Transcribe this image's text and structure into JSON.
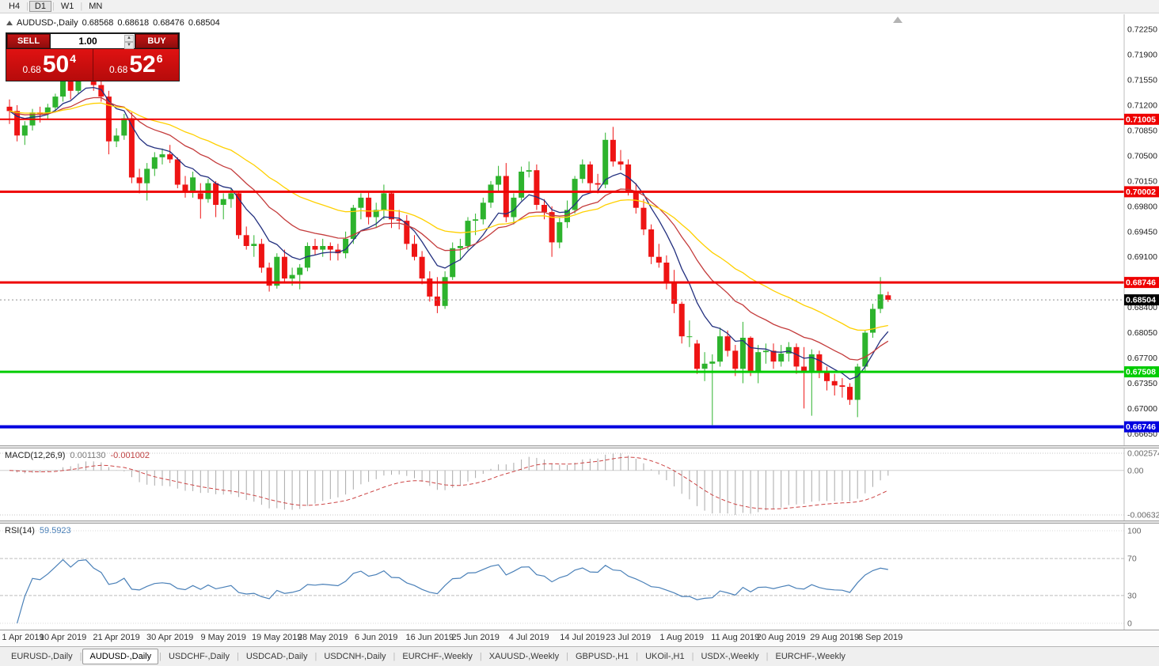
{
  "toolbar": {
    "periods": [
      {
        "label": "H4",
        "active": false
      },
      {
        "label": "D1",
        "active": true
      },
      {
        "label": "W1",
        "active": false
      },
      {
        "label": "MN",
        "active": false
      }
    ]
  },
  "chart_header": {
    "title": "AUDUSD-,Daily",
    "ohlc": {
      "open": "0.68568",
      "high": "0.68618",
      "low": "0.68476",
      "close": "0.68504"
    }
  },
  "trade_panel": {
    "sell_label": "SELL",
    "buy_label": "BUY",
    "volume": "1.00",
    "sell_price": {
      "small": "0.68",
      "big": "50",
      "sup": "4"
    },
    "buy_price": {
      "small": "0.68",
      "big": "52",
      "sup": "6"
    }
  },
  "colors": {
    "up": "#2db32d",
    "down": "#ee1414",
    "ma_fast": "#23307f",
    "ma_mid": "#c43c3c",
    "ma_slow": "#ffd000",
    "macd_hist": "#a9a9a9",
    "macd_signal": "#cc4444",
    "rsi_line": "#4a80b8",
    "hline_red": "#ee0000",
    "hline_green": "#00cc00",
    "hline_blue": "#0000e0",
    "current_tag_bg": "#000000",
    "trade_red": "#cf0e0e"
  },
  "chart_data": {
    "type": "candlestick",
    "symbol": "AUDUSD-",
    "timeframe": "Daily",
    "ohlc_current": {
      "open": 0.68568,
      "high": 0.68618,
      "low": 0.68476,
      "close": 0.68504
    },
    "price_range": {
      "min": 0.6649,
      "max": 0.7246
    },
    "axis_ticks": [
      "0.72250",
      "0.71900",
      "0.71550",
      "0.71200",
      "0.70850",
      "0.70500",
      "0.70150",
      "0.69800",
      "0.69450",
      "0.69100",
      "0.68750",
      "0.68400",
      "0.68050",
      "0.67700",
      "0.67350",
      "0.67000",
      "0.66650"
    ],
    "moving_averages": [
      {
        "name": "fast",
        "type": "ema",
        "period": 8,
        "color": "#23307f"
      },
      {
        "name": "medium",
        "type": "ema",
        "period": 18,
        "color": "#c43c3c"
      },
      {
        "name": "slow",
        "type": "ema",
        "period": 34,
        "color": "#ffd000"
      }
    ],
    "hlines": [
      {
        "price": 0.71005,
        "label": "0.71005",
        "color": "#ee0000",
        "thickness": 2
      },
      {
        "price": 0.70002,
        "label": "0.70002",
        "color": "#ee0000",
        "thickness": 3
      },
      {
        "price": 0.68746,
        "label": "0.68746",
        "color": "#ee0000",
        "thickness": 3
      },
      {
        "price": 0.67508,
        "label": "0.67508",
        "color": "#00cc00",
        "thickness": 3
      },
      {
        "price": 0.66746,
        "label": "0.66746",
        "color": "#0000e0",
        "thickness": 4
      }
    ],
    "current_price": {
      "value": 0.68504,
      "label": "0.68504"
    },
    "date_ticks": [
      {
        "label": "1 Apr 2019",
        "index": 0
      },
      {
        "label": "10 Apr 2019",
        "index": 7
      },
      {
        "label": "21 Apr 2019",
        "index": 14
      },
      {
        "label": "30 Apr 2019",
        "index": 21
      },
      {
        "label": "9 May 2019",
        "index": 28
      },
      {
        "label": "19 May 2019",
        "index": 35
      },
      {
        "label": "28 May 2019",
        "index": 41
      },
      {
        "label": "6 Jun 2019",
        "index": 48
      },
      {
        "label": "16 Jun 2019",
        "index": 55
      },
      {
        "label": "25 Jun 2019",
        "index": 61
      },
      {
        "label": "4 Jul 2019",
        "index": 68
      },
      {
        "label": "14 Jul 2019",
        "index": 75
      },
      {
        "label": "23 Jul 2019",
        "index": 81
      },
      {
        "label": "1 Aug 2019",
        "index": 88
      },
      {
        "label": "11 Aug 2019",
        "index": 95
      },
      {
        "label": "20 Aug 2019",
        "index": 101
      },
      {
        "label": "29 Aug 2019",
        "index": 108
      },
      {
        "label": "8 Sep 2019",
        "index": 114
      }
    ],
    "candles": [
      [
        0.7118,
        0.7128,
        0.7094,
        0.7112
      ],
      [
        0.7112,
        0.712,
        0.707,
        0.7078
      ],
      [
        0.7078,
        0.7098,
        0.7065,
        0.7092
      ],
      [
        0.7092,
        0.7115,
        0.7085,
        0.711
      ],
      [
        0.711,
        0.7118,
        0.7096,
        0.7108
      ],
      [
        0.7108,
        0.7122,
        0.71,
        0.7117
      ],
      [
        0.7117,
        0.7136,
        0.711,
        0.7132
      ],
      [
        0.7132,
        0.7158,
        0.7125,
        0.7155
      ],
      [
        0.7155,
        0.716,
        0.7128,
        0.714
      ],
      [
        0.714,
        0.7172,
        0.7135,
        0.7168
      ],
      [
        0.7168,
        0.7178,
        0.7155,
        0.7172
      ],
      [
        0.7172,
        0.7176,
        0.714,
        0.7148
      ],
      [
        0.7148,
        0.716,
        0.7125,
        0.7132
      ],
      [
        0.7132,
        0.714,
        0.7052,
        0.707
      ],
      [
        0.707,
        0.7088,
        0.7062,
        0.7078
      ],
      [
        0.7078,
        0.7108,
        0.7072,
        0.7102
      ],
      [
        0.7102,
        0.711,
        0.7012,
        0.702
      ],
      [
        0.702,
        0.7032,
        0.6998,
        0.7012
      ],
      [
        0.7012,
        0.704,
        0.6988,
        0.7032
      ],
      [
        0.7032,
        0.7055,
        0.7022,
        0.7048
      ],
      [
        0.7048,
        0.706,
        0.7038,
        0.7052
      ],
      [
        0.7052,
        0.7065,
        0.704,
        0.7045
      ],
      [
        0.7045,
        0.7048,
        0.7005,
        0.701
      ],
      [
        0.701,
        0.7022,
        0.6992,
        0.7
      ],
      [
        0.7,
        0.7028,
        0.6992,
        0.702
      ],
      [
        0.6998,
        0.7012,
        0.6963,
        0.699
      ],
      [
        0.699,
        0.7018,
        0.6985,
        0.7012
      ],
      [
        0.7012,
        0.7015,
        0.6965,
        0.6982
      ],
      [
        0.6982,
        0.6998,
        0.6962,
        0.699
      ],
      [
        0.699,
        0.7005,
        0.6978,
        0.6998
      ],
      [
        0.6998,
        0.7,
        0.6935,
        0.694
      ],
      [
        0.694,
        0.6952,
        0.692,
        0.6925
      ],
      [
        0.6925,
        0.694,
        0.691,
        0.6928
      ],
      [
        0.6928,
        0.6935,
        0.6888,
        0.6895
      ],
      [
        0.6895,
        0.6902,
        0.6862,
        0.687
      ],
      [
        0.687,
        0.6915,
        0.6866,
        0.691
      ],
      [
        0.691,
        0.692,
        0.6875,
        0.688
      ],
      [
        0.688,
        0.6895,
        0.687,
        0.6885
      ],
      [
        0.6885,
        0.69,
        0.6865,
        0.6895
      ],
      [
        0.6895,
        0.693,
        0.689,
        0.6925
      ],
      [
        0.6925,
        0.6935,
        0.6912,
        0.692
      ],
      [
        0.692,
        0.6935,
        0.691,
        0.6925
      ],
      [
        0.6925,
        0.693,
        0.6905,
        0.692
      ],
      [
        0.692,
        0.6928,
        0.6905,
        0.6915
      ],
      [
        0.6915,
        0.6945,
        0.6908,
        0.6935
      ],
      [
        0.6935,
        0.6982,
        0.6928,
        0.6978
      ],
      [
        0.6978,
        0.6998,
        0.6962,
        0.6992
      ],
      [
        0.6992,
        0.7,
        0.6955,
        0.6965
      ],
      [
        0.6965,
        0.6985,
        0.695,
        0.6975
      ],
      [
        0.6975,
        0.701,
        0.6962,
        0.6998
      ],
      [
        0.6998,
        0.7,
        0.695,
        0.6962
      ],
      [
        0.6962,
        0.6975,
        0.6948,
        0.696
      ],
      [
        0.696,
        0.6968,
        0.692,
        0.6928
      ],
      [
        0.6928,
        0.694,
        0.6905,
        0.691
      ],
      [
        0.691,
        0.6918,
        0.6872,
        0.688
      ],
      [
        0.688,
        0.689,
        0.6848,
        0.6855
      ],
      [
        0.6855,
        0.6882,
        0.6832,
        0.6842
      ],
      [
        0.6842,
        0.689,
        0.6838,
        0.6882
      ],
      [
        0.6882,
        0.693,
        0.6878,
        0.6922
      ],
      [
        0.6922,
        0.6935,
        0.6905,
        0.6925
      ],
      [
        0.6925,
        0.6965,
        0.692,
        0.696
      ],
      [
        0.696,
        0.697,
        0.694,
        0.6962
      ],
      [
        0.6962,
        0.6992,
        0.6955,
        0.6985
      ],
      [
        0.6985,
        0.7015,
        0.6978,
        0.701
      ],
      [
        0.701,
        0.7036,
        0.7,
        0.7022
      ],
      [
        0.7022,
        0.704,
        0.6958,
        0.6965
      ],
      [
        0.6965,
        0.6998,
        0.6955,
        0.6992
      ],
      [
        0.6992,
        0.7035,
        0.6988,
        0.7028
      ],
      [
        0.7028,
        0.7042,
        0.702,
        0.703
      ],
      [
        0.703,
        0.7038,
        0.6975,
        0.6982
      ],
      [
        0.6982,
        0.699,
        0.6962,
        0.6972
      ],
      [
        0.6972,
        0.698,
        0.691,
        0.693
      ],
      [
        0.693,
        0.6965,
        0.6922,
        0.6958
      ],
      [
        0.6958,
        0.6988,
        0.695,
        0.6975
      ],
      [
        0.6975,
        0.7022,
        0.697,
        0.7018
      ],
      [
        0.7018,
        0.7045,
        0.7012,
        0.7038
      ],
      [
        0.7038,
        0.7042,
        0.7,
        0.7012
      ],
      [
        0.7012,
        0.7025,
        0.6998,
        0.701
      ],
      [
        0.701,
        0.7082,
        0.7005,
        0.7072
      ],
      [
        0.7072,
        0.709,
        0.7035,
        0.7042
      ],
      [
        0.7042,
        0.7058,
        0.703,
        0.7038
      ],
      [
        0.7038,
        0.7045,
        0.6995,
        0.7
      ],
      [
        0.7,
        0.7012,
        0.697,
        0.6978
      ],
      [
        0.6978,
        0.699,
        0.694,
        0.6948
      ],
      [
        0.6948,
        0.6955,
        0.69,
        0.691
      ],
      [
        0.691,
        0.6928,
        0.6895,
        0.6902
      ],
      [
        0.6902,
        0.6912,
        0.6865,
        0.6875
      ],
      [
        0.6875,
        0.6892,
        0.6832,
        0.6845
      ],
      [
        0.6845,
        0.6848,
        0.679,
        0.68
      ],
      [
        0.68,
        0.6822,
        0.6785,
        0.68
      ],
      [
        0.679,
        0.6795,
        0.6748,
        0.6755
      ],
      [
        0.6755,
        0.6778,
        0.6738,
        0.6762
      ],
      [
        0.6762,
        0.6775,
        0.6677,
        0.6765
      ],
      [
        0.6765,
        0.6812,
        0.6758,
        0.68
      ],
      [
        0.68,
        0.6808,
        0.6772,
        0.678
      ],
      [
        0.678,
        0.6788,
        0.6745,
        0.6755
      ],
      [
        0.6755,
        0.682,
        0.6735,
        0.6798
      ],
      [
        0.6798,
        0.68,
        0.6745,
        0.675
      ],
      [
        0.675,
        0.6788,
        0.6735,
        0.6778
      ],
      [
        0.6778,
        0.679,
        0.6762,
        0.678
      ],
      [
        0.678,
        0.679,
        0.6755,
        0.6765
      ],
      [
        0.6765,
        0.6788,
        0.6758,
        0.6776
      ],
      [
        0.6776,
        0.6792,
        0.6765,
        0.6785
      ],
      [
        0.6785,
        0.679,
        0.6748,
        0.6758
      ],
      [
        0.6758,
        0.6785,
        0.67,
        0.6752
      ],
      [
        0.6752,
        0.6782,
        0.669,
        0.6775
      ],
      [
        0.6775,
        0.678,
        0.6742,
        0.6752
      ],
      [
        0.6752,
        0.6758,
        0.6725,
        0.6738
      ],
      [
        0.6738,
        0.6748,
        0.6718,
        0.6732
      ],
      [
        0.6732,
        0.6742,
        0.6715,
        0.673
      ],
      [
        0.673,
        0.6735,
        0.6705,
        0.6712
      ],
      [
        0.6712,
        0.6762,
        0.6688,
        0.6758
      ],
      [
        0.6758,
        0.6808,
        0.6752,
        0.6805
      ],
      [
        0.6805,
        0.6845,
        0.6798,
        0.6838
      ],
      [
        0.6838,
        0.6882,
        0.6832,
        0.6858
      ],
      [
        0.68568,
        0.68618,
        0.68476,
        0.68504
      ]
    ]
  },
  "indicators": {
    "macd": {
      "name": "MACD(12,26,9)",
      "params": [
        12,
        26,
        9
      ],
      "value1": "0.001130",
      "value2": "-0.001002",
      "axis": [
        "0.002574",
        "0.00",
        "-0.006326"
      ]
    },
    "rsi": {
      "name": "RSI(14)",
      "period": 14,
      "value": "59.5923",
      "levels": [
        30,
        70
      ],
      "axis": [
        "100",
        "70",
        "30",
        "0"
      ]
    }
  },
  "tabs": {
    "items": [
      {
        "label": "EURUSD-,Daily",
        "active": false
      },
      {
        "label": "AUDUSD-,Daily",
        "active": true
      },
      {
        "label": "USDCHF-,Daily",
        "active": false
      },
      {
        "label": "USDCAD-,Daily",
        "active": false
      },
      {
        "label": "USDCNH-,Daily",
        "active": false
      },
      {
        "label": "EURCHF-,Weekly",
        "active": false
      },
      {
        "label": "XAUUSD-,Weekly",
        "active": false
      },
      {
        "label": "GBPUSD-,H1",
        "active": false
      },
      {
        "label": "UKOil-,H1",
        "active": false
      },
      {
        "label": "USDX-,Weekly",
        "active": false
      },
      {
        "label": "EURCHF-,Weekly",
        "active": false
      }
    ]
  }
}
